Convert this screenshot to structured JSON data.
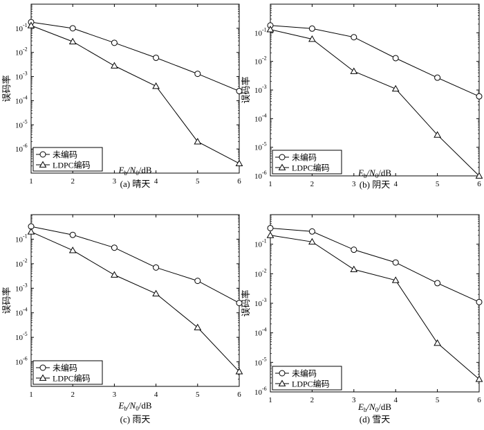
{
  "figure": {
    "ylabel": "误码率",
    "xlabel_main": "E",
    "xlabel_sub1": "b",
    "xlabel_mid": "/N",
    "xlabel_sub2": "0",
    "xlabel_unit": "/dB",
    "legend_uncoded": "未编码",
    "legend_ldpc": "LDPC编码"
  },
  "chart_data": [
    {
      "type": "line",
      "caption": "(a)  晴天",
      "x": [
        1,
        2,
        3,
        4,
        5,
        6
      ],
      "xlim": [
        1,
        6
      ],
      "ylim": [
        1e-07,
        1
      ],
      "yscale": "log",
      "xticks": [
        "1",
        "2",
        "3",
        "4",
        "5",
        "6"
      ],
      "yticks": [
        "10",
        "10",
        "10",
        "10",
        "10",
        "10"
      ],
      "ytick_exponents": [
        "-1",
        "-2",
        "-3",
        "-4",
        "-5",
        "-6"
      ],
      "legend_position": "bottom-left",
      "series": [
        {
          "name": "未编码",
          "marker": "circle",
          "values": [
            0.18,
            0.1,
            0.025,
            0.006,
            0.0013,
            0.00025
          ]
        },
        {
          "name": "LDPC编码",
          "marker": "triangle",
          "values": [
            0.13,
            0.028,
            0.0028,
            0.0004,
            2e-06,
            2.5e-07
          ]
        }
      ]
    },
    {
      "type": "line",
      "caption": "(b)  阴天",
      "x": [
        1,
        2,
        3,
        4,
        5,
        6
      ],
      "xlim": [
        1,
        6
      ],
      "ylim": [
        1e-06,
        1
      ],
      "yscale": "log",
      "xticks": [
        "1",
        "2",
        "3",
        "4",
        "5",
        "6"
      ],
      "yticks": [
        "10",
        "10",
        "10",
        "10",
        "10",
        "10"
      ],
      "ytick_exponents": [
        "-1",
        "-2",
        "-3",
        "-4",
        "-5",
        "-6"
      ],
      "legend_position": "bottom-left",
      "series": [
        {
          "name": "未编码",
          "marker": "circle",
          "values": [
            0.18,
            0.14,
            0.07,
            0.013,
            0.0027,
            0.0006
          ]
        },
        {
          "name": "LDPC编码",
          "marker": "triangle",
          "values": [
            0.13,
            0.06,
            0.0045,
            0.0011,
            2.7e-05,
            1e-06
          ]
        }
      ]
    },
    {
      "type": "line",
      "caption": "(c)  雨天",
      "x": [
        1,
        2,
        3,
        4,
        5,
        6
      ],
      "xlim": [
        1,
        6
      ],
      "ylim": [
        1e-07,
        1
      ],
      "yscale": "log",
      "xticks": [
        "1",
        "2",
        "3",
        "4",
        "5",
        "6"
      ],
      "yticks": [
        "10",
        "10",
        "10",
        "10",
        "10",
        "10"
      ],
      "ytick_exponents": [
        "-1",
        "-2",
        "-3",
        "-4",
        "-5",
        "-6"
      ],
      "legend_position": "bottom-left",
      "series": [
        {
          "name": "未编码",
          "marker": "circle",
          "values": [
            0.33,
            0.15,
            0.045,
            0.007,
            0.002,
            0.00025
          ]
        },
        {
          "name": "LDPC编码",
          "marker": "triangle",
          "values": [
            0.2,
            0.035,
            0.0035,
            0.0006,
            2.5e-05,
            4e-07
          ]
        }
      ]
    },
    {
      "type": "line",
      "caption": "(d)  雪天",
      "x": [
        1,
        2,
        3,
        4,
        5,
        6
      ],
      "xlim": [
        1,
        6
      ],
      "ylim": [
        1e-06,
        1
      ],
      "yscale": "log",
      "xticks": [
        "1",
        "2",
        "3",
        "4",
        "5",
        "6"
      ],
      "yticks": [
        "10",
        "10",
        "10",
        "10",
        "10",
        "10"
      ],
      "ytick_exponents": [
        "-1",
        "-2",
        "-3",
        "-4",
        "-5",
        "-6"
      ],
      "legend_position": "bottom-left",
      "series": [
        {
          "name": "未编码",
          "marker": "circle",
          "values": [
            0.35,
            0.27,
            0.065,
            0.024,
            0.0048,
            0.0011
          ]
        },
        {
          "name": "LDPC编码",
          "marker": "triangle",
          "values": [
            0.2,
            0.12,
            0.014,
            0.006,
            4.5e-05,
            2.7e-06
          ]
        }
      ]
    }
  ]
}
